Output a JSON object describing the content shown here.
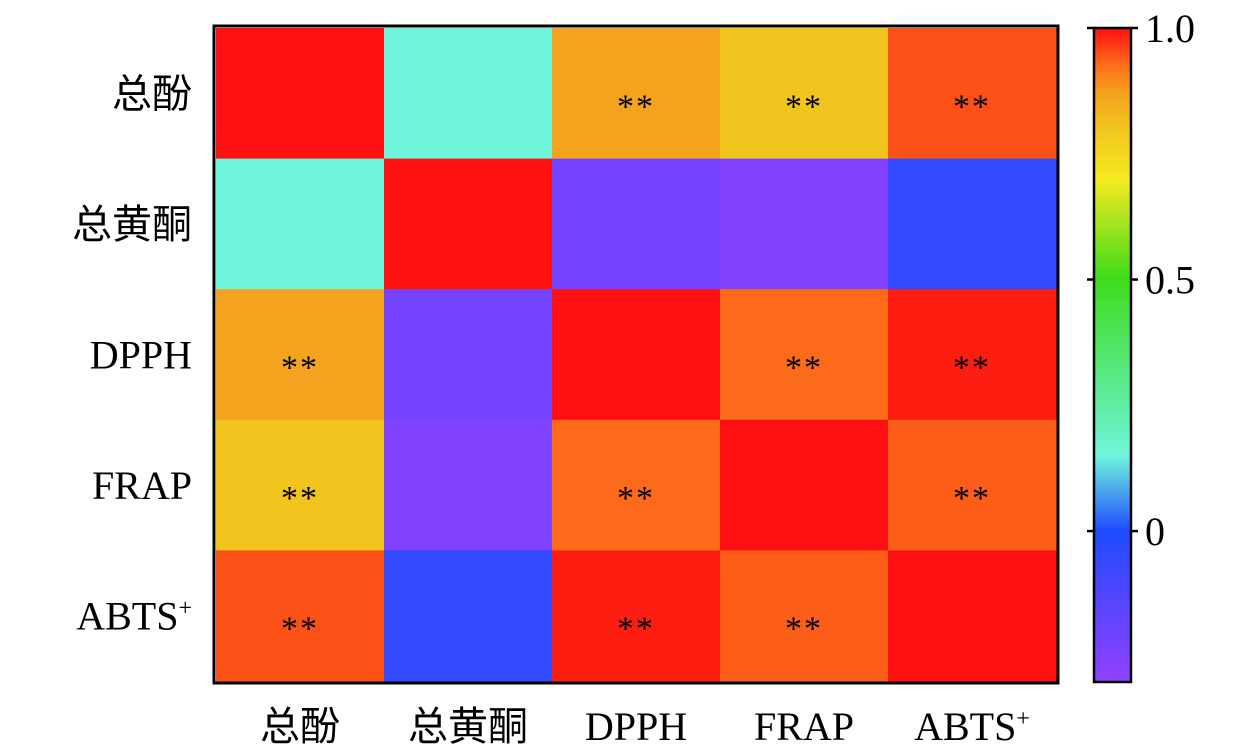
{
  "chart_data": {
    "type": "heatmap",
    "rows": [
      "总酚",
      "总黄酮",
      "DPPH",
      "FRAP",
      "ABTS+"
    ],
    "columns": [
      "总酚",
      "总黄酮",
      "DPPH",
      "FRAP",
      "ABTS+"
    ],
    "values": [
      [
        1.0,
        0.15,
        0.87,
        0.8,
        0.95
      ],
      [
        0.15,
        1.0,
        -0.22,
        -0.25,
        -0.05
      ],
      [
        0.87,
        -0.22,
        1.0,
        0.93,
        0.99
      ],
      [
        0.8,
        -0.25,
        0.93,
        1.0,
        0.94
      ],
      [
        0.95,
        -0.05,
        0.99,
        0.94,
        1.0
      ]
    ],
    "significance": [
      [
        "",
        "",
        "**",
        "**",
        "**"
      ],
      [
        "",
        "",
        "",
        "",
        ""
      ],
      [
        "**",
        "",
        "",
        "**",
        "**"
      ],
      [
        "**",
        "",
        "**",
        "",
        "**"
      ],
      [
        "**",
        "",
        "**",
        "**",
        ""
      ]
    ],
    "colorbar": {
      "min": -0.3,
      "max": 1.0,
      "ticks": [
        1.0,
        0.5,
        0
      ],
      "tick_labels": [
        "1.0",
        "0.5",
        "0"
      ],
      "colors": [
        {
          "value": -0.3,
          "color": "#9340ff"
        },
        {
          "value": 0.0,
          "color": "#1f4bff"
        },
        {
          "value": 0.15,
          "color": "#6ff5dc"
        },
        {
          "value": 0.5,
          "color": "#3ddc1a"
        },
        {
          "value": 0.7,
          "color": "#f5ea20"
        },
        {
          "value": 0.8,
          "color": "#f2c51e"
        },
        {
          "value": 0.87,
          "color": "#f5a31e"
        },
        {
          "value": 0.93,
          "color": "#fd6a1a"
        },
        {
          "value": 0.95,
          "color": "#fb5016"
        },
        {
          "value": 1.0,
          "color": "#ff1010"
        }
      ]
    }
  }
}
